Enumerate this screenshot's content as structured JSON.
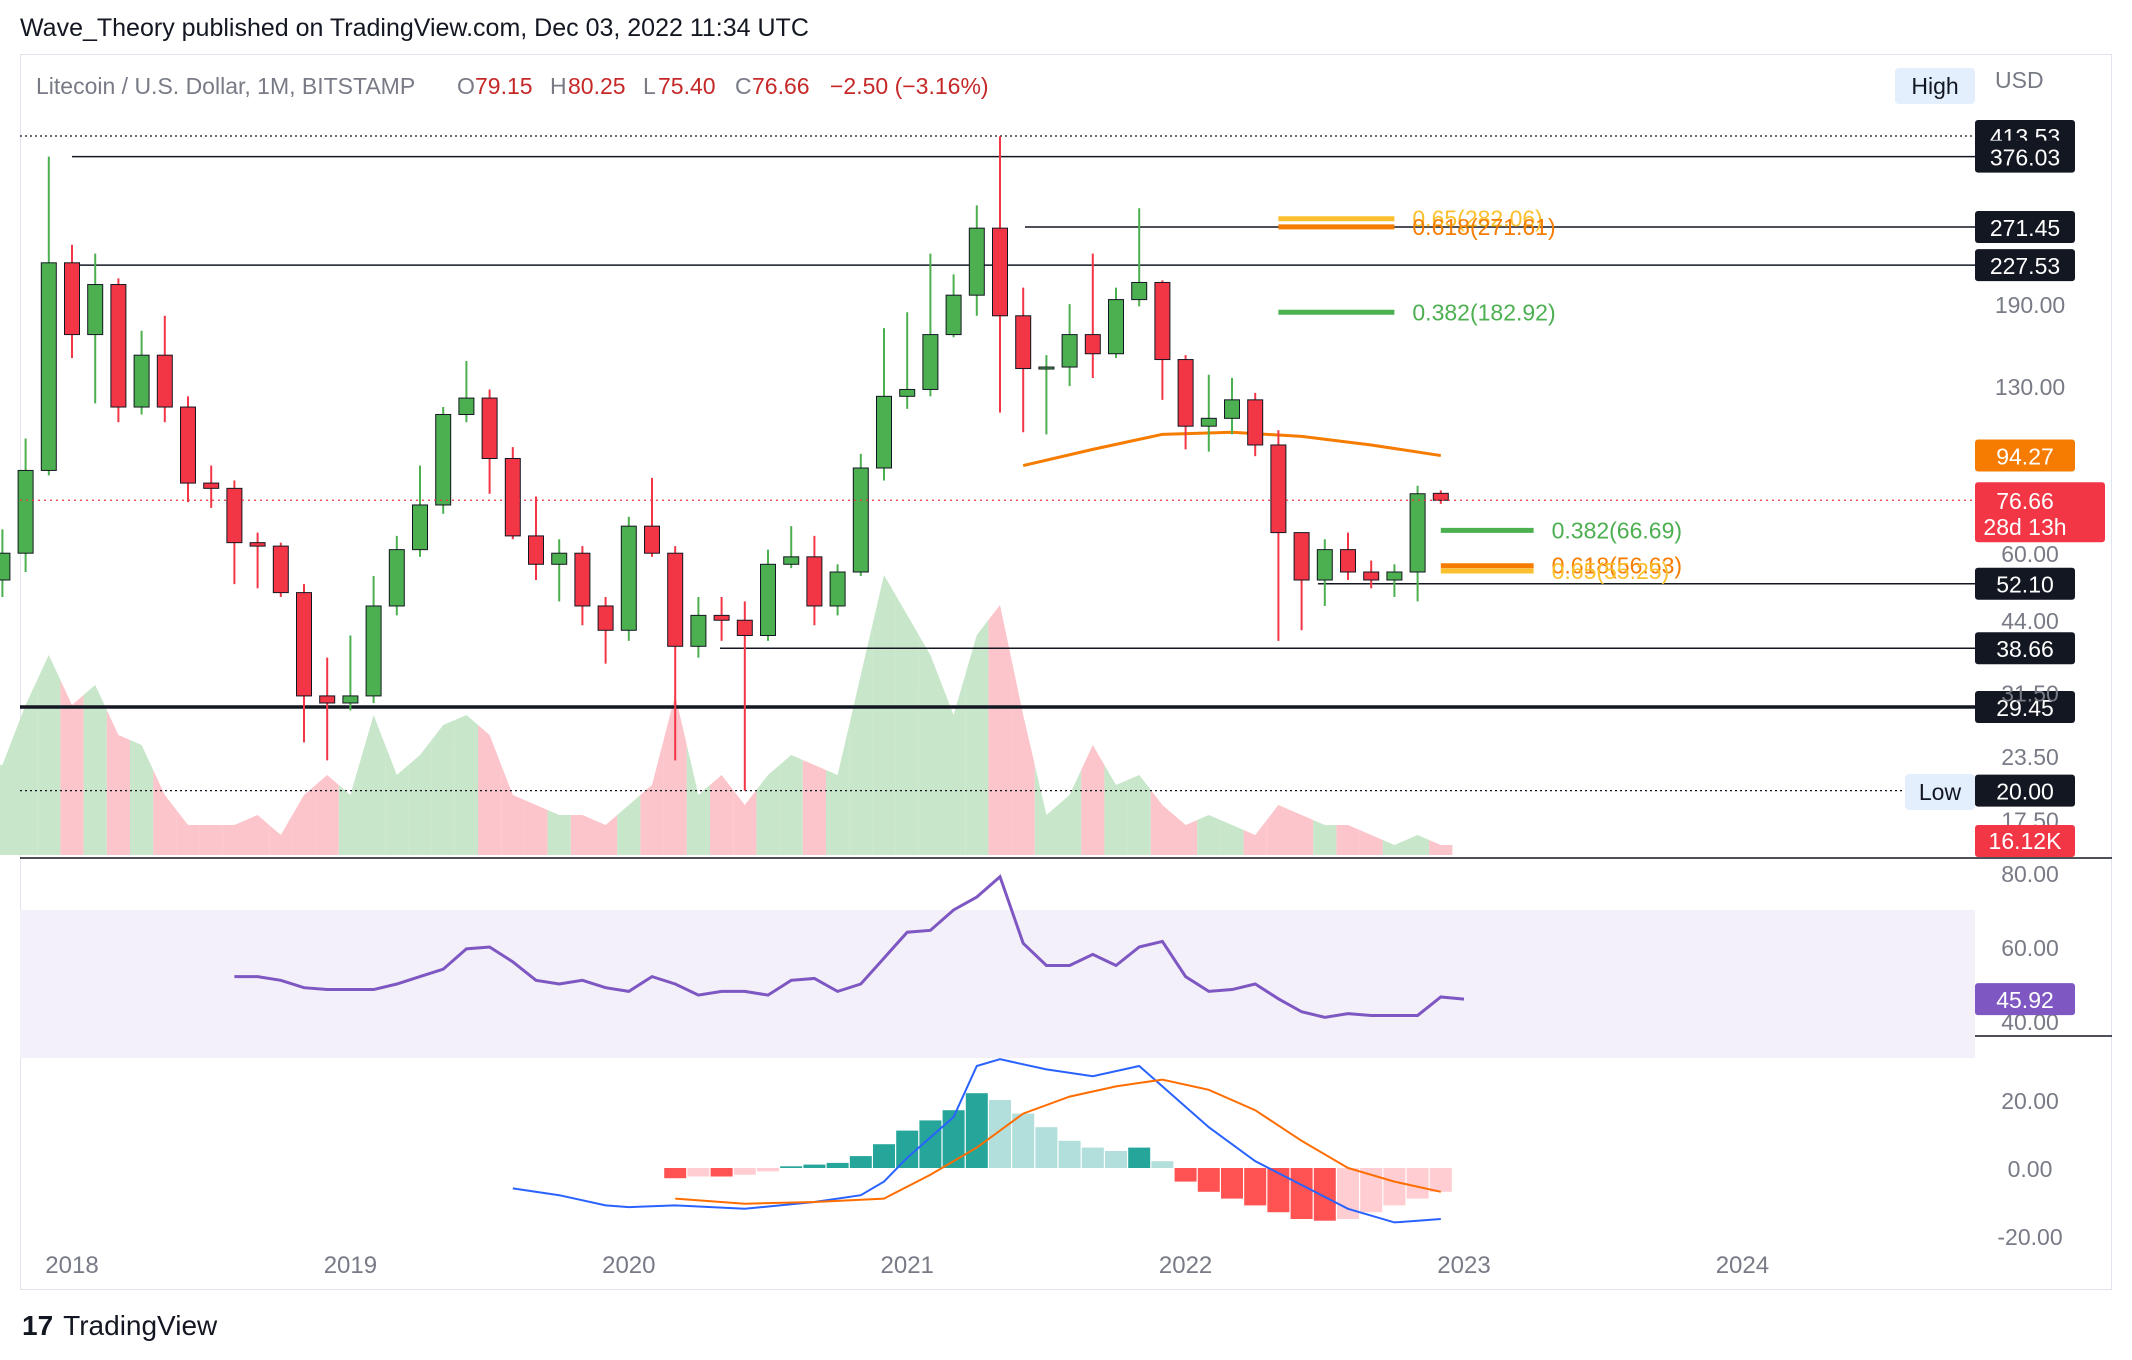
{
  "publisher": "Wave_Theory published on TradingView.com, Dec 03, 2022 11:34 UTC",
  "brand": "TradingView",
  "legend": {
    "symbol": "Litecoin / U.S. Dollar, 1M, BITSTAMP",
    "o_label": "O",
    "o_value": "79.15",
    "h_label": "H",
    "h_value": "80.25",
    "l_label": "L",
    "l_value": "75.40",
    "c_label": "C",
    "c_value": "76.66",
    "change": "−2.50 (−3.16%)"
  },
  "currency": "USD",
  "high_badge": "High",
  "low_badge": "Low",
  "colors": {
    "up": "#4caf50",
    "down": "#f23645",
    "ema": "#f57c00",
    "rsi": "#7e57c2",
    "macd": "#2962ff",
    "signal": "#ff6d00",
    "fib_gold": "#fbc02d",
    "fib_green": "#4caf50"
  },
  "chart_data": {
    "type": "candlestick",
    "timeframe": "1M",
    "price_axis": {
      "scale": "log",
      "ticks": [
        190.0,
        130.0,
        60.0,
        44.0,
        31.5,
        23.5,
        17.5
      ]
    },
    "x_axis": {
      "ticks": [
        "2018",
        "2019",
        "2020",
        "2021",
        "2022",
        "2023",
        "2024"
      ]
    },
    "candles": [
      {
        "t": "2017-10",
        "o": 53,
        "h": 67,
        "l": 49,
        "c": 60
      },
      {
        "t": "2017-11",
        "o": 60,
        "h": 102,
        "l": 55,
        "c": 88
      },
      {
        "t": "2017-12",
        "o": 88,
        "h": 376,
        "l": 86,
        "c": 230
      },
      {
        "t": "2018-01",
        "o": 230,
        "h": 250,
        "l": 148,
        "c": 165
      },
      {
        "t": "2018-02",
        "o": 165,
        "h": 240,
        "l": 120,
        "c": 208
      },
      {
        "t": "2018-03",
        "o": 208,
        "h": 214,
        "l": 110,
        "c": 118
      },
      {
        "t": "2018-04",
        "o": 118,
        "h": 168,
        "l": 114,
        "c": 150
      },
      {
        "t": "2018-05",
        "o": 150,
        "h": 180,
        "l": 110,
        "c": 118
      },
      {
        "t": "2018-06",
        "o": 118,
        "h": 124,
        "l": 76,
        "c": 83
      },
      {
        "t": "2018-07",
        "o": 83,
        "h": 90,
        "l": 74,
        "c": 81
      },
      {
        "t": "2018-08",
        "o": 81,
        "h": 84,
        "l": 52,
        "c": 63
      },
      {
        "t": "2018-09",
        "o": 63,
        "h": 66,
        "l": 51,
        "c": 62
      },
      {
        "t": "2018-10",
        "o": 62,
        "h": 63,
        "l": 49,
        "c": 50
      },
      {
        "t": "2018-11",
        "o": 50,
        "h": 52,
        "l": 25,
        "c": 31
      },
      {
        "t": "2018-12",
        "o": 31,
        "h": 37,
        "l": 23,
        "c": 30
      },
      {
        "t": "2019-01",
        "o": 30,
        "h": 41,
        "l": 29,
        "c": 31
      },
      {
        "t": "2019-02",
        "o": 31,
        "h": 54,
        "l": 30,
        "c": 47
      },
      {
        "t": "2019-03",
        "o": 47,
        "h": 65,
        "l": 45,
        "c": 61
      },
      {
        "t": "2019-04",
        "o": 61,
        "h": 90,
        "l": 59,
        "c": 75
      },
      {
        "t": "2019-05",
        "o": 75,
        "h": 118,
        "l": 72,
        "c": 114
      },
      {
        "t": "2019-06",
        "o": 114,
        "h": 146,
        "l": 110,
        "c": 123
      },
      {
        "t": "2019-07",
        "o": 123,
        "h": 128,
        "l": 79,
        "c": 93
      },
      {
        "t": "2019-08",
        "o": 93,
        "h": 98,
        "l": 64,
        "c": 65
      },
      {
        "t": "2019-09",
        "o": 65,
        "h": 78,
        "l": 53,
        "c": 57
      },
      {
        "t": "2019-10",
        "o": 57,
        "h": 64,
        "l": 48,
        "c": 60
      },
      {
        "t": "2019-11",
        "o": 60,
        "h": 62,
        "l": 43,
        "c": 47
      },
      {
        "t": "2019-12",
        "o": 47,
        "h": 49,
        "l": 36,
        "c": 42
      },
      {
        "t": "2020-01",
        "o": 42,
        "h": 71,
        "l": 40,
        "c": 68
      },
      {
        "t": "2020-02",
        "o": 68,
        "h": 85,
        "l": 59,
        "c": 60
      },
      {
        "t": "2020-03",
        "o": 60,
        "h": 62,
        "l": 23,
        "c": 39
      },
      {
        "t": "2020-04",
        "o": 39,
        "h": 49,
        "l": 37,
        "c": 45
      },
      {
        "t": "2020-05",
        "o": 45,
        "h": 49,
        "l": 40,
        "c": 44
      },
      {
        "t": "2020-06",
        "o": 44,
        "h": 48,
        "l": 20,
        "c": 41
      },
      {
        "t": "2020-07",
        "o": 41,
        "h": 61,
        "l": 40,
        "c": 57
      },
      {
        "t": "2020-08",
        "o": 57,
        "h": 68,
        "l": 56,
        "c": 59
      },
      {
        "t": "2020-09",
        "o": 59,
        "h": 65,
        "l": 43,
        "c": 47
      },
      {
        "t": "2020-10",
        "o": 47,
        "h": 57,
        "l": 45,
        "c": 55
      },
      {
        "t": "2020-11",
        "o": 55,
        "h": 95,
        "l": 54,
        "c": 89
      },
      {
        "t": "2020-12",
        "o": 89,
        "h": 170,
        "l": 84,
        "c": 124
      },
      {
        "t": "2021-01",
        "o": 124,
        "h": 183,
        "l": 117,
        "c": 128
      },
      {
        "t": "2021-02",
        "o": 128,
        "h": 240,
        "l": 124,
        "c": 165
      },
      {
        "t": "2021-03",
        "o": 165,
        "h": 218,
        "l": 163,
        "c": 198
      },
      {
        "t": "2021-04",
        "o": 198,
        "h": 300,
        "l": 180,
        "c": 270
      },
      {
        "t": "2021-05",
        "o": 270,
        "h": 413,
        "l": 115,
        "c": 180
      },
      {
        "t": "2021-06",
        "o": 180,
        "h": 205,
        "l": 105,
        "c": 141
      },
      {
        "t": "2021-07",
        "o": 141,
        "h": 150,
        "l": 104,
        "c": 142
      },
      {
        "t": "2021-08",
        "o": 142,
        "h": 190,
        "l": 130,
        "c": 165
      },
      {
        "t": "2021-09",
        "o": 165,
        "h": 240,
        "l": 135,
        "c": 151
      },
      {
        "t": "2021-10",
        "o": 151,
        "h": 205,
        "l": 148,
        "c": 194
      },
      {
        "t": "2021-11",
        "o": 194,
        "h": 296,
        "l": 188,
        "c": 210
      },
      {
        "t": "2021-12",
        "o": 210,
        "h": 212,
        "l": 122,
        "c": 147
      },
      {
        "t": "2022-01",
        "o": 147,
        "h": 150,
        "l": 97,
        "c": 108
      },
      {
        "t": "2022-02",
        "o": 108,
        "h": 137,
        "l": 96,
        "c": 112
      },
      {
        "t": "2022-03",
        "o": 112,
        "h": 135,
        "l": 104,
        "c": 122
      },
      {
        "t": "2022-04",
        "o": 122,
        "h": 126,
        "l": 94,
        "c": 99
      },
      {
        "t": "2022-05",
        "o": 99,
        "h": 106,
        "l": 40,
        "c": 66
      },
      {
        "t": "2022-06",
        "o": 66,
        "h": 66,
        "l": 42,
        "c": 53
      },
      {
        "t": "2022-07",
        "o": 53,
        "h": 64,
        "l": 47,
        "c": 61
      },
      {
        "t": "2022-08",
        "o": 61,
        "h": 66,
        "l": 53,
        "c": 55
      },
      {
        "t": "2022-09",
        "o": 55,
        "h": 58,
        "l": 51,
        "c": 53
      },
      {
        "t": "2022-10",
        "o": 53,
        "h": 57,
        "l": 49,
        "c": 55
      },
      {
        "t": "2022-11",
        "o": 55,
        "h": 82,
        "l": 48,
        "c": 79
      },
      {
        "t": "2022-12",
        "o": 79.15,
        "h": 80.25,
        "l": 75.4,
        "c": 76.66
      }
    ],
    "ema": [
      {
        "t": "2021-06",
        "v": 90
      },
      {
        "t": "2021-09",
        "v": 97
      },
      {
        "t": "2021-12",
        "v": 104
      },
      {
        "t": "2022-03",
        "v": 105
      },
      {
        "t": "2022-06",
        "v": 103
      },
      {
        "t": "2022-09",
        "v": 99
      },
      {
        "t": "2022-12",
        "v": 94.27
      }
    ],
    "horizontal_levels": [
      {
        "label": "413.53",
        "value": 413.53,
        "style": "dotted"
      },
      {
        "label": "376.03",
        "value": 376.03,
        "style": "solid"
      },
      {
        "label": "271.45",
        "value": 271.45,
        "style": "solid"
      },
      {
        "label": "227.53",
        "value": 227.53,
        "style": "solid"
      },
      {
        "label": "52.10",
        "value": 52.1,
        "style": "solid"
      },
      {
        "label": "38.66",
        "value": 38.66,
        "style": "solid"
      },
      {
        "label": "29.45",
        "value": 29.45,
        "style": "bold"
      },
      {
        "label": "20.00",
        "value": 20.0,
        "style": "dotted"
      }
    ],
    "fib_levels": [
      {
        "label": "0.65(282.06)",
        "value": 282.06,
        "color": "gold",
        "t_start": "2022-05",
        "t_end": "2022-10"
      },
      {
        "label": "0.618(271.61)",
        "value": 271.61,
        "color": "orange",
        "t_start": "2022-05",
        "t_end": "2022-10"
      },
      {
        "label": "0.382(182.92)",
        "value": 182.92,
        "color": "green",
        "t_start": "2022-05",
        "t_end": "2022-10"
      },
      {
        "label": "0.382(66.69)",
        "value": 66.69,
        "color": "green",
        "t_start": "2022-12",
        "t_end": "2023-04"
      },
      {
        "label": "0.618(56.63)",
        "value": 56.63,
        "color": "orange",
        "t_start": "2022-12",
        "t_end": "2023-04"
      },
      {
        "label": "0.65(55.25)",
        "value": 55.25,
        "color": "gold",
        "t_start": "2022-12",
        "t_end": "2023-04"
      }
    ],
    "last_price": {
      "label": "76.66",
      "countdown": "28d 13h",
      "value": 76.66
    },
    "ema_label": "94.27",
    "volume": {
      "last_label": "16.12K",
      "series": [
        0.45,
        0.75,
        1.0,
        0.75,
        0.85,
        0.6,
        0.55,
        0.3,
        0.15,
        0.15,
        0.15,
        0.2,
        0.1,
        0.3,
        0.4,
        0.3,
        0.7,
        0.4,
        0.5,
        0.65,
        0.7,
        0.6,
        0.3,
        0.25,
        0.2,
        0.2,
        0.15,
        0.25,
        0.35,
        0.8,
        0.3,
        0.4,
        0.25,
        0.4,
        0.5,
        0.45,
        0.4,
        0.9,
        1.4,
        1.2,
        1.0,
        0.7,
        1.1,
        1.25,
        0.7,
        0.2,
        0.3,
        0.55,
        0.35,
        0.4,
        0.25,
        0.15,
        0.2,
        0.15,
        0.1,
        0.25,
        0.2,
        0.15,
        0.15,
        0.1,
        0.05,
        0.1,
        0.05
      ]
    },
    "rsi": {
      "last_label": "45.92",
      "ticks": [
        80.0,
        60.0,
        40.0
      ],
      "band": [
        70,
        30
      ],
      "series": [
        {
          "t": "2018-08",
          "v": 52
        },
        {
          "t": "2018-09",
          "v": 52
        },
        {
          "t": "2018-10",
          "v": 51
        },
        {
          "t": "2018-11",
          "v": 49
        },
        {
          "t": "2018-12",
          "v": 48.5
        },
        {
          "t": "2019-01",
          "v": 48.5
        },
        {
          "t": "2019-02",
          "v": 48.5
        },
        {
          "t": "2019-03",
          "v": 50
        },
        {
          "t": "2019-04",
          "v": 52
        },
        {
          "t": "2019-05",
          "v": 54
        },
        {
          "t": "2019-06",
          "v": 59.5
        },
        {
          "t": "2019-07",
          "v": 60
        },
        {
          "t": "2019-08",
          "v": 56
        },
        {
          "t": "2019-09",
          "v": 51
        },
        {
          "t": "2019-10",
          "v": 50
        },
        {
          "t": "2019-11",
          "v": 51
        },
        {
          "t": "2019-12",
          "v": 49
        },
        {
          "t": "2020-01",
          "v": 48
        },
        {
          "t": "2020-02",
          "v": 52
        },
        {
          "t": "2020-03",
          "v": 50
        },
        {
          "t": "2020-04",
          "v": 47
        },
        {
          "t": "2020-05",
          "v": 48
        },
        {
          "t": "2020-06",
          "v": 48
        },
        {
          "t": "2020-07",
          "v": 47
        },
        {
          "t": "2020-08",
          "v": 51
        },
        {
          "t": "2020-09",
          "v": 51.5
        },
        {
          "t": "2020-10",
          "v": 48
        },
        {
          "t": "2020-11",
          "v": 50
        },
        {
          "t": "2020-12",
          "v": 57
        },
        {
          "t": "2021-01",
          "v": 64
        },
        {
          "t": "2021-02",
          "v": 64.5
        },
        {
          "t": "2021-03",
          "v": 70
        },
        {
          "t": "2021-04",
          "v": 73.5
        },
        {
          "t": "2021-05",
          "v": 79
        },
        {
          "t": "2021-06",
          "v": 61
        },
        {
          "t": "2021-07",
          "v": 55
        },
        {
          "t": "2021-08",
          "v": 55
        },
        {
          "t": "2021-09",
          "v": 58
        },
        {
          "t": "2021-10",
          "v": 55
        },
        {
          "t": "2021-11",
          "v": 60
        },
        {
          "t": "2021-12",
          "v": 61.5
        },
        {
          "t": "2022-01",
          "v": 52
        },
        {
          "t": "2022-02",
          "v": 48
        },
        {
          "t": "2022-03",
          "v": 48.5
        },
        {
          "t": "2022-04",
          "v": 50
        },
        {
          "t": "2022-05",
          "v": 46
        },
        {
          "t": "2022-06",
          "v": 42.5
        },
        {
          "t": "2022-07",
          "v": 41
        },
        {
          "t": "2022-08",
          "v": 42
        },
        {
          "t": "2022-09",
          "v": 41.5
        },
        {
          "t": "2022-10",
          "v": 41.5
        },
        {
          "t": "2022-11",
          "v": 41.5
        },
        {
          "t": "2022-12",
          "v": 46.5
        },
        {
          "t": "2023-01",
          "v": 45.92
        }
      ]
    },
    "macd": {
      "ticks": [
        20.0,
        0.0,
        -20.0
      ],
      "macd_line": [
        {
          "t": "2019-08",
          "v": -6
        },
        {
          "t": "2019-10",
          "v": -8
        },
        {
          "t": "2019-12",
          "v": -11
        },
        {
          "t": "2020-01",
          "v": -11.5
        },
        {
          "t": "2020-03",
          "v": -11
        },
        {
          "t": "2020-06",
          "v": -12
        },
        {
          "t": "2020-09",
          "v": -10
        },
        {
          "t": "2020-11",
          "v": -8
        },
        {
          "t": "2020-12",
          "v": -4
        },
        {
          "t": "2021-01",
          "v": 3
        },
        {
          "t": "2021-03",
          "v": 15
        },
        {
          "t": "2021-04",
          "v": 30
        },
        {
          "t": "2021-05",
          "v": 32
        },
        {
          "t": "2021-07",
          "v": 29
        },
        {
          "t": "2021-09",
          "v": 27
        },
        {
          "t": "2021-11",
          "v": 30
        },
        {
          "t": "2021-12",
          "v": 24
        },
        {
          "t": "2022-02",
          "v": 12
        },
        {
          "t": "2022-04",
          "v": 2
        },
        {
          "t": "2022-06",
          "v": -5
        },
        {
          "t": "2022-08",
          "v": -12
        },
        {
          "t": "2022-10",
          "v": -16
        },
        {
          "t": "2022-11",
          "v": -15.5
        },
        {
          "t": "2022-12",
          "v": -15
        }
      ],
      "signal_line": [
        {
          "t": "2020-03",
          "v": -9
        },
        {
          "t": "2020-06",
          "v": -10.5
        },
        {
          "t": "2020-09",
          "v": -10
        },
        {
          "t": "2020-12",
          "v": -9
        },
        {
          "t": "2021-02",
          "v": -2
        },
        {
          "t": "2021-04",
          "v": 6
        },
        {
          "t": "2021-06",
          "v": 16
        },
        {
          "t": "2021-08",
          "v": 21
        },
        {
          "t": "2021-10",
          "v": 24
        },
        {
          "t": "2021-12",
          "v": 26
        },
        {
          "t": "2022-02",
          "v": 23
        },
        {
          "t": "2022-04",
          "v": 17
        },
        {
          "t": "2022-06",
          "v": 8
        },
        {
          "t": "2022-08",
          "v": 0
        },
        {
          "t": "2022-10",
          "v": -4
        },
        {
          "t": "2022-12",
          "v": -7
        }
      ],
      "histogram": [
        {
          "t": "2020-03",
          "v": -3
        },
        {
          "t": "2020-04",
          "v": -2.5
        },
        {
          "t": "2020-05",
          "v": -2.5
        },
        {
          "t": "2020-06",
          "v": -2
        },
        {
          "t": "2020-07",
          "v": -1
        },
        {
          "t": "2020-08",
          "v": 0.5
        },
        {
          "t": "2020-09",
          "v": 1
        },
        {
          "t": "2020-10",
          "v": 1.5
        },
        {
          "t": "2020-11",
          "v": 3.5
        },
        {
          "t": "2020-12",
          "v": 7
        },
        {
          "t": "2021-01",
          "v": 11
        },
        {
          "t": "2021-02",
          "v": 14
        },
        {
          "t": "2021-03",
          "v": 17
        },
        {
          "t": "2021-04",
          "v": 22
        },
        {
          "t": "2021-05",
          "v": 20
        },
        {
          "t": "2021-06",
          "v": 16
        },
        {
          "t": "2021-07",
          "v": 12
        },
        {
          "t": "2021-08",
          "v": 8
        },
        {
          "t": "2021-09",
          "v": 6
        },
        {
          "t": "2021-10",
          "v": 5
        },
        {
          "t": "2021-11",
          "v": 6
        },
        {
          "t": "2021-12",
          "v": 2
        },
        {
          "t": "2022-01",
          "v": -4
        },
        {
          "t": "2022-02",
          "v": -7
        },
        {
          "t": "2022-03",
          "v": -9
        },
        {
          "t": "2022-04",
          "v": -11
        },
        {
          "t": "2022-05",
          "v": -13
        },
        {
          "t": "2022-06",
          "v": -15
        },
        {
          "t": "2022-07",
          "v": -15.5
        },
        {
          "t": "2022-08",
          "v": -15
        },
        {
          "t": "2022-09",
          "v": -13
        },
        {
          "t": "2022-10",
          "v": -11
        },
        {
          "t": "2022-11",
          "v": -9
        },
        {
          "t": "2022-12",
          "v": -7
        }
      ]
    }
  }
}
